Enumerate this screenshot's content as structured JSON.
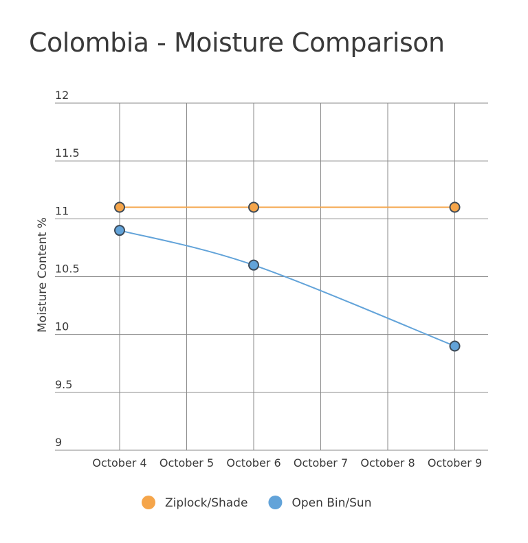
{
  "chart_data": {
    "type": "line",
    "title": "Colombia - Moisture Comparison",
    "xlabel": "",
    "ylabel": "Moisture Content %",
    "categories": [
      "October 4",
      "October 5",
      "October 6",
      "October 7",
      "October 8",
      "October 9"
    ],
    "ylim": [
      9,
      12
    ],
    "yticks": [
      "12",
      "11.5",
      "11",
      "10.5",
      "10",
      "9.5",
      "9"
    ],
    "grid": true,
    "legend_position": "bottom",
    "series": [
      {
        "name": "Ziplock/Shade",
        "color": "#f5a54a",
        "points": [
          {
            "x": "October 4",
            "y": 11.1
          },
          {
            "x": "October 6",
            "y": 11.1
          },
          {
            "x": "October 9",
            "y": 11.1
          }
        ]
      },
      {
        "name": "Open Bin/Sun",
        "color": "#62a3d9",
        "points": [
          {
            "x": "October 4",
            "y": 10.9
          },
          {
            "x": "October 6",
            "y": 10.6
          },
          {
            "x": "October 9",
            "y": 9.9
          }
        ]
      }
    ]
  }
}
